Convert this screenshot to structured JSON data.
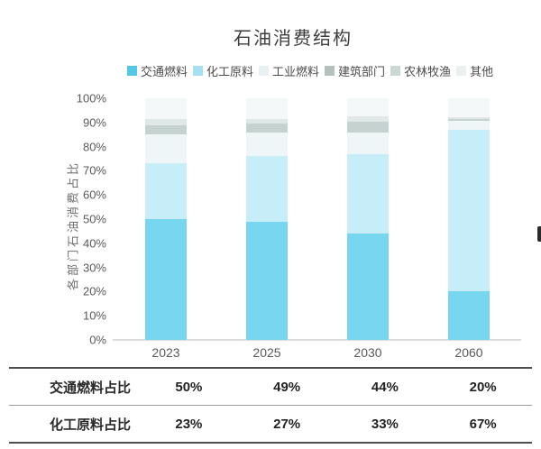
{
  "header": {
    "title": "石油消费结构"
  },
  "chart_data": {
    "type": "bar",
    "stacked": true,
    "title": "石油消费结构",
    "ylabel": "各部门石油消费占比",
    "xlabel": "",
    "categories": [
      "2023",
      "2025",
      "2030",
      "2060"
    ],
    "series": [
      {
        "name": "交通燃料",
        "color": "#79d6f0",
        "legend_color": "#53c7e4",
        "values": [
          50,
          49,
          44,
          20
        ]
      },
      {
        "name": "化工原料",
        "color": "#c7edf8",
        "legend_color": "#a6dff2",
        "values": [
          23,
          27,
          33,
          67
        ]
      },
      {
        "name": "工业燃料",
        "color": "#eef6f8",
        "legend_color": "#e7f0f2",
        "values": [
          12,
          10,
          9,
          3.5
        ]
      },
      {
        "name": "建筑部门",
        "color": "#c5d2cf",
        "legend_color": "#b2c0be",
        "values": [
          4,
          3.5,
          4.5,
          1
        ]
      },
      {
        "name": "农林牧渔",
        "color": "#dfe8e6",
        "legend_color": "#ccd8d5",
        "values": [
          2.5,
          2,
          2,
          0.5
        ]
      },
      {
        "name": "其他",
        "color": "#f4f8f9",
        "legend_color": "#eaf0f0",
        "values": [
          8.5,
          8.5,
          7.5,
          8
        ]
      }
    ],
    "ylim": [
      0,
      100
    ],
    "yticks": [
      "100%",
      "90%",
      "80%",
      "70%",
      "60%",
      "50%",
      "40%",
      "30%",
      "20%",
      "10%",
      "0%"
    ],
    "grid": false,
    "legend_position": "top"
  },
  "table": {
    "rows": [
      {
        "label": "交通燃料占比",
        "values": [
          "50%",
          "49%",
          "44%",
          "20%"
        ]
      },
      {
        "label": "化工原料占比",
        "values": [
          "23%",
          "27%",
          "33%",
          "67%"
        ]
      }
    ]
  }
}
